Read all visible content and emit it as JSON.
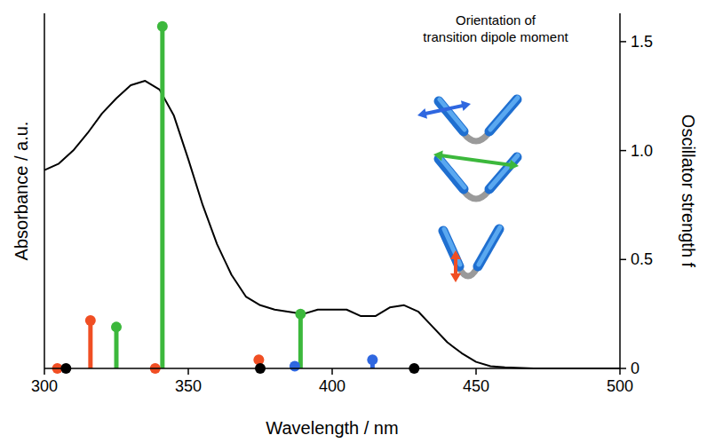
{
  "chart_data": {
    "type": "line",
    "x_label": "Wavelength / nm",
    "y_label": "Absorbance / a.u.",
    "y2_label": "Oscillator strength f",
    "inset_title": [
      "Orientation of",
      "transition dipole moment"
    ],
    "xlim": [
      300,
      500
    ],
    "xticks": [
      300,
      350,
      400,
      450,
      500
    ],
    "ylim": [
      0,
      1.63
    ],
    "y2lim": [
      0,
      1.63
    ],
    "y2ticks": [
      0,
      0.5,
      {
        "value": 1,
        "label": "1.0"
      },
      1.5
    ],
    "grid": false,
    "series": [
      {
        "type": "line",
        "color": "#000000",
        "x": [
          300,
          305,
          310,
          315,
          320,
          325,
          330,
          335,
          340,
          345,
          350,
          355,
          360,
          365,
          370,
          375,
          380,
          385,
          390,
          395,
          400,
          405,
          410,
          415,
          420,
          425,
          430,
          435,
          440,
          445,
          450,
          455,
          460,
          470,
          480,
          490,
          500
        ],
        "values": [
          0.91,
          0.94,
          1.0,
          1.08,
          1.17,
          1.24,
          1.3,
          1.32,
          1.28,
          1.16,
          0.96,
          0.75,
          0.57,
          0.43,
          0.33,
          0.29,
          0.27,
          0.26,
          0.25,
          0.27,
          0.27,
          0.27,
          0.24,
          0.24,
          0.28,
          0.29,
          0.26,
          0.19,
          0.12,
          0.07,
          0.03,
          0.01,
          0.005,
          0,
          0,
          0,
          0
        ]
      },
      {
        "type": "stem",
        "axis": "y2",
        "color": "#3cb83c",
        "marker": "circle",
        "x": [
          325,
          341,
          389
        ],
        "values": [
          0.19,
          1.57,
          0.25
        ]
      },
      {
        "type": "stem",
        "axis": "y2",
        "color": "#f04e23",
        "marker": "circle",
        "x": [
          304.5,
          316,
          338.5,
          374.5
        ],
        "values": [
          0,
          0.22,
          0,
          0.04
        ]
      },
      {
        "type": "stem",
        "axis": "y2",
        "color": "#2f67e0",
        "marker": "circle",
        "x": [
          387,
          414
        ],
        "values": [
          0.01,
          0.04
        ]
      },
      {
        "type": "stem",
        "axis": "y2",
        "color": "#000000",
        "marker": "circle",
        "x": [
          307.5,
          375,
          428.5
        ],
        "values": [
          0,
          0,
          0
        ]
      }
    ]
  }
}
